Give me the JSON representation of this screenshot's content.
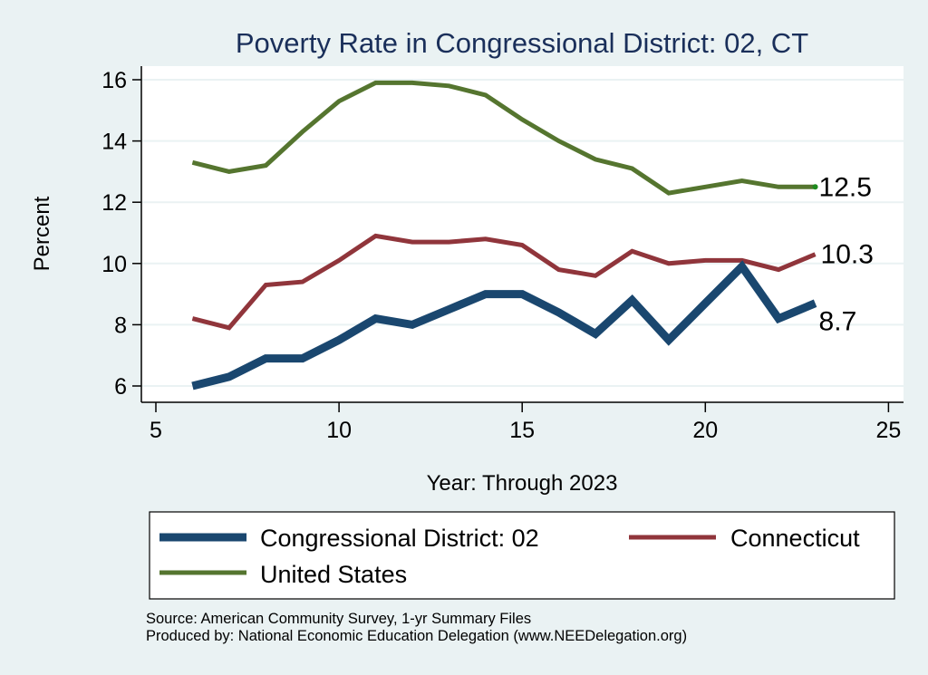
{
  "chart_data": {
    "type": "line",
    "title": "Poverty Rate in Congressional District:  02, CT",
    "xlabel": "Year: Through 2023",
    "ylabel": "Percent",
    "xlim": [
      5,
      25
    ],
    "ylim": [
      5.5,
      16.5
    ],
    "x_ticks": [
      5,
      10,
      15,
      20,
      25
    ],
    "y_ticks": [
      6,
      8,
      10,
      12,
      14,
      16
    ],
    "grid": "horizontal",
    "legend_position": "bottom",
    "x": [
      6,
      7,
      8,
      9,
      10,
      11,
      12,
      13,
      14,
      15,
      16,
      17,
      18,
      19,
      20,
      21,
      22,
      23
    ],
    "series": [
      {
        "name": "Congressional District:  02",
        "color": "#1a476f",
        "values": [
          6.0,
          6.3,
          6.9,
          6.9,
          7.5,
          8.2,
          8.0,
          8.5,
          9.0,
          9.0,
          8.4,
          7.7,
          8.8,
          7.5,
          8.7,
          9.9,
          8.2,
          8.7
        ],
        "end_label": "8.7"
      },
      {
        "name": "Connecticut",
        "color": "#90353b",
        "values": [
          8.2,
          7.9,
          9.3,
          9.4,
          10.1,
          10.9,
          10.7,
          10.7,
          10.8,
          10.6,
          9.8,
          9.6,
          10.4,
          10.0,
          10.1,
          10.1,
          9.8,
          10.3
        ],
        "end_label": "10.3"
      },
      {
        "name": "United States",
        "color": "#55752f",
        "values": [
          13.3,
          13.0,
          13.2,
          14.3,
          15.3,
          15.9,
          15.9,
          15.8,
          15.5,
          14.7,
          14.0,
          13.4,
          13.1,
          12.3,
          12.5,
          12.7,
          12.5,
          12.5
        ],
        "end_label": "12.5"
      }
    ]
  },
  "notes": {
    "source": "Source: American Community Survey, 1-yr Summary Files",
    "produced_by": "Produced by: National Economic Education Delegation (www.NEEDelegation.org)"
  }
}
